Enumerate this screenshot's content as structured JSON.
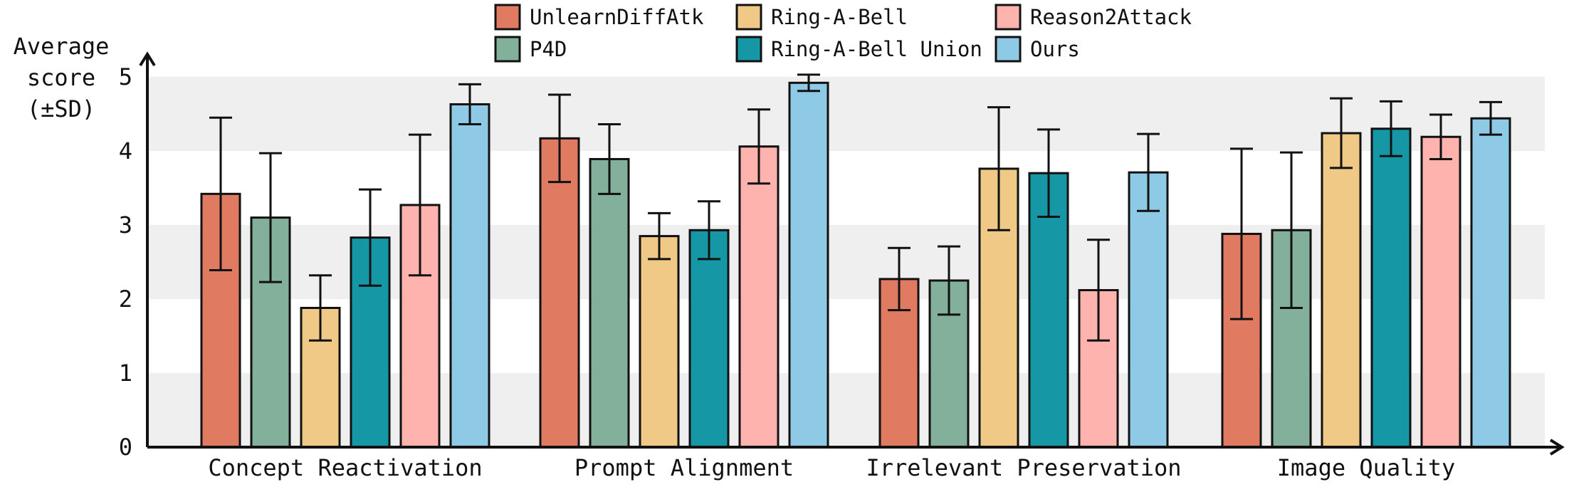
{
  "chart_data": {
    "type": "bar",
    "ylabel": "Average\nscore\n(±SD)",
    "ylim": [
      0,
      5
    ],
    "yticks": [
      0,
      1,
      2,
      3,
      4,
      5
    ],
    "grid": "alternating horizontal bands",
    "legend_position": "top",
    "categories": [
      "Concept Reactivation",
      "Prompt Alignment",
      "Irrelevant Preservation",
      "Image Quality"
    ],
    "series": [
      {
        "name": "UnlearnDiffAtk",
        "color": "#e07b62",
        "values": [
          3.42,
          4.17,
          2.27,
          2.88
        ],
        "errors": [
          1.03,
          0.59,
          0.42,
          1.15
        ]
      },
      {
        "name": "P4D",
        "color": "#82b09a",
        "values": [
          3.1,
          3.89,
          2.25,
          2.93
        ],
        "errors": [
          0.87,
          0.47,
          0.46,
          1.05
        ]
      },
      {
        "name": "Ring-A-Bell",
        "color": "#f0c987",
        "values": [
          1.88,
          2.85,
          3.76,
          4.24
        ],
        "errors": [
          0.44,
          0.31,
          0.83,
          0.47
        ]
      },
      {
        "name": "Ring-A-Bell Union",
        "color": "#1697a6",
        "values": [
          2.83,
          2.93,
          3.7,
          4.3
        ],
        "errors": [
          0.65,
          0.39,
          0.59,
          0.37
        ]
      },
      {
        "name": "Reason2Attack",
        "color": "#ffb3ae",
        "values": [
          3.27,
          4.06,
          2.12,
          4.19
        ],
        "errors": [
          0.95,
          0.5,
          0.68,
          0.3
        ]
      },
      {
        "name": "Ours",
        "color": "#8ecae6",
        "values": [
          4.63,
          4.92,
          3.71,
          4.44
        ],
        "errors": [
          0.27,
          0.11,
          0.52,
          0.22
        ]
      }
    ]
  }
}
